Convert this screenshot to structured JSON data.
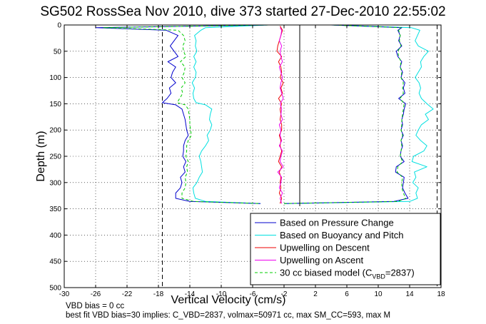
{
  "title": "SG502 RossSea Nov 2010, dive 373 started 27-Dec-2010 22:55:02",
  "footnotes": {
    "vbd_bias": "VBD bias = 0 cc",
    "best_fit": "best fit VBD bias=30 implies: C_VBD=2837, volmax=50971 cc, max SM_CC=593, max M"
  },
  "colors": {
    "pressure": "#0000cc",
    "buoyancy": "#00e0e0",
    "descent": "#ee0000",
    "ascent": "#ee00ee",
    "model": "#00cc00"
  },
  "chart_data": {
    "type": "line",
    "title": "SG502 RossSea Nov 2010, dive 373 started 27-Dec-2010 22:55:02",
    "xlabel": "Vertical Velocity (cm/s)",
    "ylabel": "Depth (m)",
    "xlim": [
      -30,
      18
    ],
    "ylim": [
      0,
      500
    ],
    "y_reversed": true,
    "xticks": [
      -30,
      -26,
      -22,
      -18,
      -14,
      -10,
      -6,
      -2,
      2,
      6,
      10,
      14,
      18
    ],
    "yticks": [
      0,
      50,
      100,
      150,
      200,
      250,
      300,
      350,
      400,
      450,
      500
    ],
    "grid": "dotted",
    "legend_position": "bottom-right",
    "reference_lines": {
      "zero_velocity_x": 0,
      "dashed_left_x": -17.5,
      "dashed_right_x": 17.5
    },
    "legend": [
      {
        "key": "pressure",
        "label": "Based on Pressure Change",
        "style": "solid"
      },
      {
        "key": "buoyancy",
        "label": "Based on Buoyancy and Pitch",
        "style": "solid"
      },
      {
        "key": "descent",
        "label": "Upwelling on Descent",
        "style": "solid"
      },
      {
        "key": "ascent",
        "label": "Upwelling on Ascent",
        "style": "solid"
      },
      {
        "key": "model",
        "label": "30 cc biased model (C",
        "sub": "VBD",
        "tail": "=2837)",
        "style": "dashed"
      }
    ],
    "series": [
      {
        "key": "pressure",
        "name": "Based on Pressure Change",
        "descent": {
          "depth": [
            0,
            5,
            10,
            20,
            30,
            40,
            50,
            60,
            70,
            80,
            90,
            100,
            110,
            120,
            130,
            140,
            148,
            152,
            160,
            170,
            180,
            190,
            200,
            210,
            220,
            230,
            240,
            250,
            260,
            270,
            280,
            290,
            300,
            310,
            320,
            330,
            336,
            340
          ],
          "x": [
            -4,
            -26,
            -17,
            -15.5,
            -16,
            -16.5,
            -16,
            -15.5,
            -16.8,
            -15.8,
            -16.2,
            -16.4,
            -15.8,
            -16.6,
            -16.4,
            -16.9,
            -17.5,
            -15.8,
            -15,
            -14.8,
            -14.6,
            -14.5,
            -14.4,
            -14.2,
            -14.6,
            -14.8,
            -14.8,
            -14.9,
            -14.5,
            -14.8,
            -14.6,
            -15.2,
            -15,
            -15.2,
            -15.8,
            -15.8,
            -14,
            -5
          ]
        },
        "ascent": {
          "depth": [
            340,
            336,
            330,
            320,
            310,
            300,
            290,
            280,
            270,
            260,
            250,
            240,
            230,
            220,
            210,
            200,
            190,
            180,
            170,
            160,
            150,
            140,
            130,
            120,
            110,
            100,
            90,
            80,
            70,
            60,
            50,
            40,
            30,
            20,
            10,
            5,
            0
          ],
          "x": [
            -2,
            12,
            13.8,
            13.4,
            13.1,
            13.2,
            13.3,
            12.2,
            12.3,
            13.3,
            12.8,
            12.9,
            13.1,
            12.9,
            13.2,
            12.9,
            13.1,
            13,
            13.2,
            13.3,
            13.5,
            12.6,
            13.4,
            13.2,
            13.4,
            12.9,
            13.1,
            12.8,
            13,
            12.5,
            12.3,
            13,
            12.6,
            12.8,
            12.5,
            13,
            4
          ]
        }
      },
      {
        "key": "buoyancy",
        "name": "Based on Buoyancy and Pitch",
        "descent": {
          "depth": [
            0,
            5,
            10,
            20,
            30,
            40,
            50,
            60,
            70,
            80,
            90,
            100,
            110,
            120,
            130,
            140,
            148,
            152,
            160,
            170,
            180,
            190,
            200,
            210,
            220,
            230,
            240,
            250,
            260,
            270,
            280,
            290,
            300,
            310,
            320,
            330,
            336,
            340
          ],
          "x": [
            -4,
            -12,
            -12.6,
            -13.4,
            -13.2,
            -13.3,
            -13.1,
            -13.5,
            -13.2,
            -13.5,
            -13.2,
            -13.3,
            -13.7,
            -13.4,
            -13.6,
            -13.5,
            -13.2,
            -12,
            -11.2,
            -11.4,
            -11.5,
            -11.2,
            -11.4,
            -11.8,
            -11.6,
            -12,
            -12.5,
            -12.8,
            -12.6,
            -12.5,
            -12.4,
            -12.8,
            -13.1,
            -13.6,
            -13.5,
            -13.3,
            -12,
            -5
          ]
        },
        "ascent": {
          "depth": [
            340,
            336,
            330,
            320,
            310,
            300,
            290,
            280,
            270,
            260,
            250,
            240,
            230,
            220,
            210,
            200,
            190,
            180,
            170,
            160,
            150,
            140,
            130,
            120,
            110,
            100,
            90,
            80,
            70,
            60,
            50,
            40,
            30,
            20,
            10,
            5,
            0
          ],
          "x": [
            -2,
            14,
            15,
            14.8,
            15.1,
            14.4,
            14.8,
            14.6,
            16.2,
            14.3,
            14.5,
            15.8,
            16.2,
            15.4,
            14.8,
            15.1,
            15.5,
            16.4,
            16,
            17,
            16.2,
            15.5,
            15.2,
            15.4,
            15.2,
            14.7,
            15.1,
            15.5,
            15.4,
            15.8,
            16.4,
            15.1,
            14.7,
            15,
            15.3,
            14.2,
            4
          ]
        }
      },
      {
        "key": "descent",
        "name": "Upwelling on Descent",
        "depth": [
          2,
          10,
          20,
          30,
          40,
          50,
          60,
          70,
          80,
          90,
          100,
          110,
          120,
          130,
          140,
          150,
          160,
          170,
          180,
          190,
          200,
          210,
          220,
          230,
          240,
          250,
          260,
          270,
          280,
          290,
          300,
          310,
          320,
          330,
          340
        ],
        "x": [
          -2.5,
          -2.2,
          -2.4,
          -2.6,
          -2.8,
          -2.9,
          -2.3,
          -2.7,
          -2.4,
          -2.3,
          -2.5,
          -2.1,
          -2.4,
          -2.2,
          -2.7,
          -2.3,
          -2.5,
          -2.4,
          -2.5,
          -2.3,
          -2.3,
          -2.6,
          -2.4,
          -2.5,
          -2.3,
          -2.5,
          -2.7,
          -2.3,
          -2.6,
          -2.4,
          -2.5,
          -2.4,
          -2.6,
          -2.3,
          -2.5
        ]
      },
      {
        "key": "ascent",
        "name": "Upwelling on Ascent",
        "depth": [
          340,
          330,
          320,
          310,
          300,
          290,
          280,
          270,
          260,
          250,
          240,
          230,
          220,
          210,
          200,
          190,
          180,
          170,
          160,
          150,
          140,
          130,
          120,
          110,
          100,
          90,
          80,
          70,
          60,
          50,
          40,
          30,
          20,
          10,
          5
        ],
        "x": [
          -2.3,
          -2.5,
          -2.2,
          -2.6,
          -2.4,
          -2.3,
          -2.8,
          -2.1,
          -2.5,
          -2.4,
          -2.2,
          -2.6,
          -2.3,
          -2.5,
          -2.4,
          -2.6,
          -2.2,
          -2.4,
          -2.3,
          -2.5,
          -2.1,
          -2.3,
          -2.5,
          -2.4,
          -2.2,
          -2.4,
          -2.6,
          -2.2,
          -2.4,
          -2.5,
          -2.3,
          -2.6,
          -2.4,
          -2.3,
          -2.5
        ]
      },
      {
        "key": "model",
        "name": "30 cc biased model (C_VBD=2837)",
        "descent": {
          "depth": [
            0,
            5,
            10,
            20,
            30,
            40,
            50,
            60,
            70,
            80,
            90,
            100,
            110,
            120,
            130,
            140,
            148,
            152,
            160,
            170,
            180,
            190,
            200,
            210,
            220,
            230,
            240,
            250,
            260,
            270,
            280,
            290,
            300,
            310,
            320,
            330,
            336,
            340
          ],
          "x": [
            -4,
            -25,
            -15.5,
            -14.8,
            -14.6,
            -14.9,
            -14.8,
            -14.5,
            -15.2,
            -14.6,
            -14.7,
            -15,
            -14.6,
            -15.1,
            -14.9,
            -15.3,
            -15.6,
            -14.6,
            -14.2,
            -14.1,
            -14,
            -14,
            -13.9,
            -13.8,
            -14.2,
            -14.4,
            -14.4,
            -14.5,
            -14.2,
            -14.4,
            -14.3,
            -14.6,
            -14.5,
            -14.6,
            -15,
            -15,
            -13.5,
            -5
          ]
        },
        "ascent": {
          "depth": [
            340,
            336,
            330,
            320,
            310,
            300,
            290,
            280,
            270,
            260,
            250,
            240,
            230,
            220,
            210,
            200,
            190,
            180,
            170,
            160,
            150,
            140,
            130,
            120,
            110,
            100,
            90,
            80,
            70,
            60,
            50,
            40,
            30,
            20,
            10,
            5,
            0
          ],
          "x": [
            -2,
            12.5,
            13.5,
            13.2,
            13,
            13,
            13.1,
            12.4,
            12.5,
            13.1,
            12.8,
            12.9,
            13,
            12.9,
            13.1,
            12.9,
            13,
            13,
            13.1,
            13.2,
            13.3,
            12.8,
            13.2,
            13.1,
            13.2,
            12.9,
            13,
            12.8,
            12.9,
            12.6,
            12.5,
            12.9,
            12.7,
            12.8,
            12.6,
            12.9,
            4
          ]
        }
      }
    ]
  }
}
